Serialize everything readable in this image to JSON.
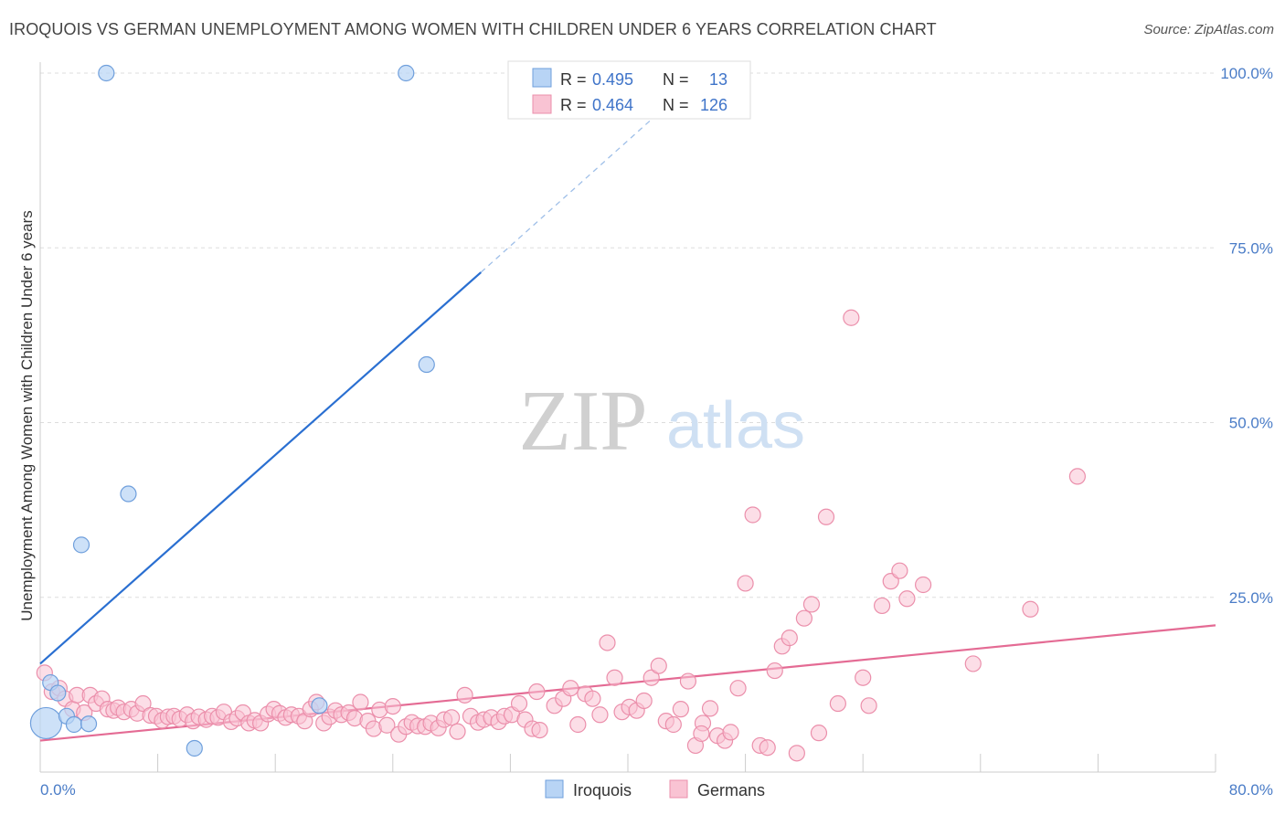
{
  "title": "IROQUOIS VS GERMAN UNEMPLOYMENT AMONG WOMEN WITH CHILDREN UNDER 6 YEARS CORRELATION CHART",
  "source": "Source: ZipAtlas.com",
  "watermark": {
    "zip": "ZIP",
    "atlas": "atlas"
  },
  "colors": {
    "iroquois_fill": "#b8d4f5",
    "iroquois_stroke": "#6f9fdc",
    "iroquois_line": "#2a6fd1",
    "germans_fill": "#f9c3d3",
    "germans_stroke": "#eb8fab",
    "germans_line": "#e46b94",
    "tick_text": "#4a7cc7",
    "grid": "#dddddd"
  },
  "legend_top": [
    {
      "r_label": "R = ",
      "r_value": "0.495",
      "n_label": "N = ",
      "n_value": "13",
      "series": "Iroquois"
    },
    {
      "r_label": "R = ",
      "r_value": "0.464",
      "n_label": "N = ",
      "n_value": "126",
      "series": "Germans"
    }
  ],
  "chart_data": {
    "type": "scatter",
    "title": "IROQUOIS VS GERMAN UNEMPLOYMENT AMONG WOMEN WITH CHILDREN UNDER 6 YEARS CORRELATION CHART",
    "xlabel": "",
    "ylabel": "Unemployment Among Women with Children Under 6 years",
    "xlim": [
      0,
      80
    ],
    "ylim": [
      0,
      100
    ],
    "x_tick_labels": [
      "0.0%",
      "80.0%"
    ],
    "y_tick_values": [
      25,
      50,
      75,
      100
    ],
    "y_tick_labels": [
      "25.0%",
      "50.0%",
      "75.0%",
      "100.0%"
    ],
    "grid": true,
    "legend_position": "bottom",
    "series": [
      {
        "name": "Iroquois",
        "r": 0.495,
        "n": 13,
        "trend": {
          "x0": 0,
          "y0": 15.5,
          "x1": 30,
          "y1": 71.5,
          "dashed_to_x": 43,
          "dashed_to_y": 96
        },
        "points": [
          {
            "x": 0.4,
            "y": 7.0,
            "big": true
          },
          {
            "x": 0.7,
            "y": 12.8
          },
          {
            "x": 1.2,
            "y": 11.3
          },
          {
            "x": 1.8,
            "y": 8.0
          },
          {
            "x": 2.3,
            "y": 6.8
          },
          {
            "x": 2.8,
            "y": 32.5
          },
          {
            "x": 3.3,
            "y": 6.9
          },
          {
            "x": 4.5,
            "y": 100.0
          },
          {
            "x": 6.0,
            "y": 39.8
          },
          {
            "x": 10.5,
            "y": 3.4
          },
          {
            "x": 19.0,
            "y": 9.5
          },
          {
            "x": 24.9,
            "y": 100.0
          },
          {
            "x": 26.3,
            "y": 58.3
          }
        ]
      },
      {
        "name": "Germans",
        "r": 0.464,
        "n": 126,
        "trend": {
          "x0": 0,
          "y0": 4.5,
          "x1": 80,
          "y1": 21.0
        },
        "points": [
          {
            "x": 0.3,
            "y": 14.2
          },
          {
            "x": 0.8,
            "y": 11.5
          },
          {
            "x": 1.3,
            "y": 12.0
          },
          {
            "x": 1.7,
            "y": 10.5
          },
          {
            "x": 2.2,
            "y": 9.0
          },
          {
            "x": 2.5,
            "y": 11.0
          },
          {
            "x": 3.0,
            "y": 8.5
          },
          {
            "x": 3.4,
            "y": 11.0
          },
          {
            "x": 3.8,
            "y": 9.8
          },
          {
            "x": 4.2,
            "y": 10.5
          },
          {
            "x": 4.6,
            "y": 9.0
          },
          {
            "x": 5.0,
            "y": 8.8
          },
          {
            "x": 5.3,
            "y": 9.2
          },
          {
            "x": 5.7,
            "y": 8.6
          },
          {
            "x": 6.2,
            "y": 9.0
          },
          {
            "x": 6.6,
            "y": 8.4
          },
          {
            "x": 7.0,
            "y": 9.8
          },
          {
            "x": 7.5,
            "y": 8.1
          },
          {
            "x": 7.9,
            "y": 8.0
          },
          {
            "x": 8.3,
            "y": 7.4
          },
          {
            "x": 8.7,
            "y": 7.9
          },
          {
            "x": 9.1,
            "y": 8.0
          },
          {
            "x": 9.5,
            "y": 7.6
          },
          {
            "x": 10.0,
            "y": 8.2
          },
          {
            "x": 10.4,
            "y": 7.3
          },
          {
            "x": 10.8,
            "y": 7.9
          },
          {
            "x": 11.3,
            "y": 7.5
          },
          {
            "x": 11.7,
            "y": 8.0
          },
          {
            "x": 12.1,
            "y": 7.8
          },
          {
            "x": 12.5,
            "y": 8.6
          },
          {
            "x": 13.0,
            "y": 7.2
          },
          {
            "x": 13.4,
            "y": 7.7
          },
          {
            "x": 13.8,
            "y": 8.5
          },
          {
            "x": 14.2,
            "y": 7.0
          },
          {
            "x": 14.6,
            "y": 7.4
          },
          {
            "x": 15.0,
            "y": 7.0
          },
          {
            "x": 15.5,
            "y": 8.3
          },
          {
            "x": 15.9,
            "y": 9.0
          },
          {
            "x": 16.3,
            "y": 8.4
          },
          {
            "x": 16.7,
            "y": 7.8
          },
          {
            "x": 17.1,
            "y": 8.2
          },
          {
            "x": 17.6,
            "y": 8.0
          },
          {
            "x": 18.0,
            "y": 7.3
          },
          {
            "x": 18.4,
            "y": 9.0
          },
          {
            "x": 18.8,
            "y": 10.0
          },
          {
            "x": 19.3,
            "y": 7.0
          },
          {
            "x": 19.7,
            "y": 7.9
          },
          {
            "x": 20.1,
            "y": 8.8
          },
          {
            "x": 20.5,
            "y": 8.2
          },
          {
            "x": 21.0,
            "y": 8.5
          },
          {
            "x": 21.4,
            "y": 7.7
          },
          {
            "x": 21.8,
            "y": 10.0
          },
          {
            "x": 22.3,
            "y": 7.3
          },
          {
            "x": 22.7,
            "y": 6.2
          },
          {
            "x": 23.1,
            "y": 8.9
          },
          {
            "x": 23.6,
            "y": 6.7
          },
          {
            "x": 24.0,
            "y": 9.4
          },
          {
            "x": 24.4,
            "y": 5.4
          },
          {
            "x": 24.9,
            "y": 6.5
          },
          {
            "x": 25.3,
            "y": 7.1
          },
          {
            "x": 25.7,
            "y": 6.6
          },
          {
            "x": 26.2,
            "y": 6.5
          },
          {
            "x": 26.6,
            "y": 7.0
          },
          {
            "x": 27.1,
            "y": 6.3
          },
          {
            "x": 27.5,
            "y": 7.5
          },
          {
            "x": 28.0,
            "y": 7.8
          },
          {
            "x": 28.4,
            "y": 5.8
          },
          {
            "x": 28.9,
            "y": 11.0
          },
          {
            "x": 29.3,
            "y": 8.0
          },
          {
            "x": 29.8,
            "y": 7.1
          },
          {
            "x": 30.2,
            "y": 7.5
          },
          {
            "x": 30.7,
            "y": 7.8
          },
          {
            "x": 31.2,
            "y": 7.2
          },
          {
            "x": 31.6,
            "y": 8.0
          },
          {
            "x": 32.1,
            "y": 8.2
          },
          {
            "x": 32.6,
            "y": 9.8
          },
          {
            "x": 33.0,
            "y": 7.5
          },
          {
            "x": 33.5,
            "y": 6.2
          },
          {
            "x": 34.0,
            "y": 6.0
          },
          {
            "x": 35.0,
            "y": 9.5
          },
          {
            "x": 35.6,
            "y": 10.5
          },
          {
            "x": 36.1,
            "y": 12.0
          },
          {
            "x": 36.6,
            "y": 6.8
          },
          {
            "x": 37.1,
            "y": 11.2
          },
          {
            "x": 37.6,
            "y": 10.5
          },
          {
            "x": 38.1,
            "y": 8.2
          },
          {
            "x": 38.6,
            "y": 18.5
          },
          {
            "x": 39.1,
            "y": 13.5
          },
          {
            "x": 39.6,
            "y": 8.6
          },
          {
            "x": 40.1,
            "y": 9.3
          },
          {
            "x": 40.6,
            "y": 8.8
          },
          {
            "x": 41.1,
            "y": 10.2
          },
          {
            "x": 41.6,
            "y": 13.5
          },
          {
            "x": 42.1,
            "y": 15.2
          },
          {
            "x": 42.6,
            "y": 7.3
          },
          {
            "x": 43.1,
            "y": 6.8
          },
          {
            "x": 43.6,
            "y": 9.0
          },
          {
            "x": 44.1,
            "y": 13.0
          },
          {
            "x": 44.6,
            "y": 3.8
          },
          {
            "x": 45.1,
            "y": 7.0
          },
          {
            "x": 45.6,
            "y": 9.1
          },
          {
            "x": 46.1,
            "y": 5.2
          },
          {
            "x": 46.6,
            "y": 4.5
          },
          {
            "x": 47.0,
            "y": 5.7
          },
          {
            "x": 47.5,
            "y": 12.0
          },
          {
            "x": 48.0,
            "y": 27.0
          },
          {
            "x": 48.5,
            "y": 36.8
          },
          {
            "x": 49.0,
            "y": 3.8
          },
          {
            "x": 49.5,
            "y": 3.5
          },
          {
            "x": 50.0,
            "y": 14.5
          },
          {
            "x": 50.5,
            "y": 18.0
          },
          {
            "x": 51.0,
            "y": 19.2
          },
          {
            "x": 51.5,
            "y": 2.7
          },
          {
            "x": 52.0,
            "y": 22.0
          },
          {
            "x": 52.5,
            "y": 24.0
          },
          {
            "x": 53.0,
            "y": 5.6
          },
          {
            "x": 53.5,
            "y": 36.5
          },
          {
            "x": 54.3,
            "y": 9.8
          },
          {
            "x": 55.2,
            "y": 65.0
          },
          {
            "x": 56.0,
            "y": 13.5
          },
          {
            "x": 56.4,
            "y": 9.5
          },
          {
            "x": 57.3,
            "y": 23.8
          },
          {
            "x": 57.9,
            "y": 27.3
          },
          {
            "x": 58.5,
            "y": 28.8
          },
          {
            "x": 59.0,
            "y": 24.8
          },
          {
            "x": 60.1,
            "y": 26.8
          },
          {
            "x": 63.5,
            "y": 15.5
          },
          {
            "x": 67.4,
            "y": 23.3
          },
          {
            "x": 70.6,
            "y": 42.3
          },
          {
            "x": 45.0,
            "y": 5.5
          },
          {
            "x": 33.8,
            "y": 11.5
          }
        ]
      }
    ]
  }
}
